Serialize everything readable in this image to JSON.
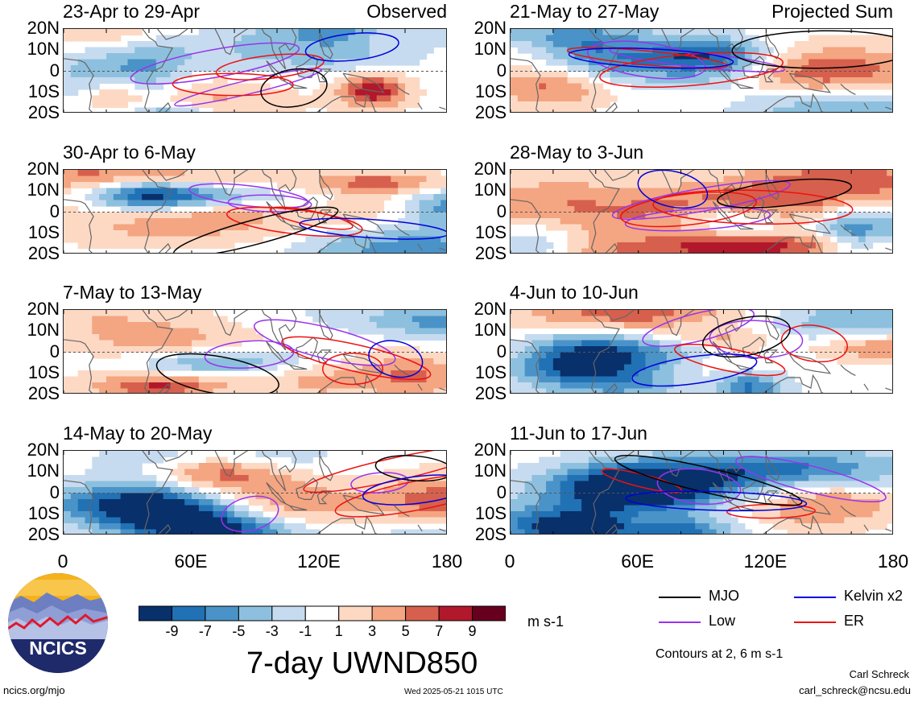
{
  "panels": [
    {
      "title": "23-Apr to 29-Apr",
      "tag": "Observed"
    },
    {
      "title": "30-Apr to 6-May",
      "tag": ""
    },
    {
      "title": "7-May to 13-May",
      "tag": ""
    },
    {
      "title": "14-May to 20-May",
      "tag": ""
    },
    {
      "title": "21-May to 27-May",
      "tag": "Projected Sum"
    },
    {
      "title": "28-May to 3-Jun",
      "tag": ""
    },
    {
      "title": "4-Jun to 10-Jun",
      "tag": ""
    },
    {
      "title": "11-Jun to 17-Jun",
      "tag": ""
    }
  ],
  "lat_ticks": [
    "20N",
    "10N",
    "0",
    "10S",
    "20S"
  ],
  "lon_ticks": [
    "0",
    "60E",
    "120E",
    "180"
  ],
  "colorbar": {
    "ticks": [
      "-9",
      "-7",
      "-5",
      "-3",
      "-1",
      "1",
      "3",
      "5",
      "7",
      "9"
    ],
    "colors": [
      "#08306b",
      "#2171b5",
      "#4a93c8",
      "#8dc0de",
      "#c6dbef",
      "#ffffff",
      "#fdd9c4",
      "#f4a582",
      "#d6604d",
      "#b2182b",
      "#67001f"
    ],
    "units": "m s-1"
  },
  "chart_title": "7-day UWND850",
  "legend": {
    "items": [
      {
        "label": "MJO",
        "color": "#000000"
      },
      {
        "label": "Kelvin x2",
        "color": "#0000dd"
      },
      {
        "label": "Low",
        "color": "#9933ee"
      },
      {
        "label": "ER",
        "color": "#ee1111"
      }
    ],
    "note": "Contours at 2, 6 m s-1"
  },
  "logo_text": "NCICS",
  "footer": {
    "url": "ncics.org/mjo",
    "timestamp": "Wed 2025-05-21 1015 UTC",
    "author": "Carl Schreck",
    "email": "carl_schreck@ncsu.edu"
  },
  "chart_data": {
    "type": "heatmap",
    "title": "7-day UWND850",
    "variable": "850-hPa zonal wind anomaly (7-day mean)",
    "units": "m s-1",
    "x_range": [
      0,
      180
    ],
    "y_range": [
      -20,
      20
    ],
    "color_levels": [
      -9,
      -7,
      -5,
      -3,
      -1,
      1,
      3,
      5,
      7,
      9
    ],
    "contour_levels_m_s-1": [
      2,
      6
    ],
    "contour_series": [
      "MJO",
      "Kelvin x2",
      "Low",
      "ER"
    ]
  }
}
